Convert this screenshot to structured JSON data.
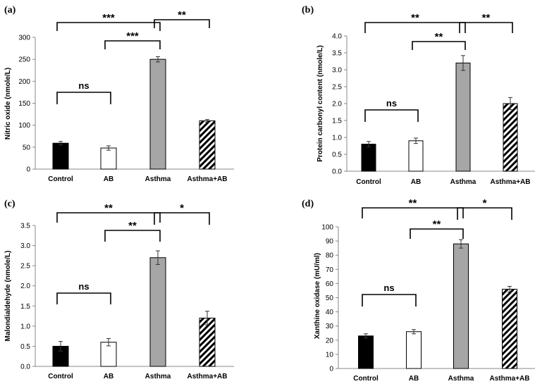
{
  "figure": {
    "categories": [
      "Control",
      "AB",
      "Asthma",
      "Asthma+AB"
    ],
    "bar_colors": [
      "#000000",
      "#ffffff",
      "#a6a6a6",
      "hatch"
    ],
    "accent": "#000000"
  },
  "chart_data": [
    {
      "type": "bar",
      "label": "(a)",
      "categories": [
        "Control",
        "AB",
        "Asthma",
        "Asthma+AB"
      ],
      "values": [
        59,
        48,
        250,
        110
      ],
      "errors": [
        4,
        5,
        6,
        3
      ],
      "ylabel": "Nitric oxide (nmole/L)",
      "ylim": [
        0,
        300
      ],
      "yticks": [
        "0",
        "50",
        "100",
        "150",
        "200",
        "250",
        "300"
      ],
      "significance": [
        {
          "from": 0,
          "to": 2,
          "label": "***"
        },
        {
          "from": 1,
          "to": 2,
          "label": "***"
        },
        {
          "from": 2,
          "to": 3,
          "label": "**"
        },
        {
          "from": 0,
          "to": 1,
          "label": "ns"
        }
      ]
    },
    {
      "type": "bar",
      "label": "(b)",
      "categories": [
        "Control",
        "AB",
        "Asthma",
        "Asthma+AB"
      ],
      "values": [
        0.8,
        0.9,
        3.2,
        2.0
      ],
      "errors": [
        0.08,
        0.08,
        0.22,
        0.18
      ],
      "ylabel": "Protein carbonyl content (nmole/L)",
      "ylim": [
        0,
        4
      ],
      "yticks": [
        "0.0",
        "0.5",
        "1.0",
        "1.5",
        "2.0",
        "2.5",
        "3.0",
        "3.5",
        "4.0"
      ],
      "significance": [
        {
          "from": 0,
          "to": 2,
          "label": "**"
        },
        {
          "from": 1,
          "to": 2,
          "label": "**"
        },
        {
          "from": 2,
          "to": 3,
          "label": "**"
        },
        {
          "from": 0,
          "to": 1,
          "label": "ns"
        }
      ]
    },
    {
      "type": "bar",
      "label": "(c)",
      "categories": [
        "Control",
        "AB",
        "Asthma",
        "Asthma+AB"
      ],
      "values": [
        0.5,
        0.6,
        2.7,
        1.2
      ],
      "errors": [
        0.12,
        0.09,
        0.17,
        0.17
      ],
      "ylabel": "Malondialdehyde (nmole/L)",
      "ylim": [
        0,
        3.5
      ],
      "yticks": [
        "0.0",
        "0.5",
        "1.0",
        "1.5",
        "2.0",
        "2.5",
        "3.0",
        "3.5"
      ],
      "significance": [
        {
          "from": 0,
          "to": 2,
          "label": "**"
        },
        {
          "from": 1,
          "to": 2,
          "label": "**"
        },
        {
          "from": 2,
          "to": 3,
          "label": "*"
        },
        {
          "from": 0,
          "to": 1,
          "label": "ns"
        }
      ]
    },
    {
      "type": "bar",
      "label": "(d)",
      "categories": [
        "Control",
        "AB",
        "Asthma",
        "Asthma+AB"
      ],
      "values": [
        23,
        26,
        88,
        56
      ],
      "errors": [
        1.5,
        1.5,
        3,
        2
      ],
      "ylabel": "Xanthine oxidase (mU/ml)",
      "ylim": [
        0,
        100
      ],
      "yticks": [
        "0",
        "10",
        "20",
        "30",
        "40",
        "50",
        "60",
        "70",
        "80",
        "90",
        "100"
      ],
      "significance": [
        {
          "from": 0,
          "to": 2,
          "label": "**"
        },
        {
          "from": 1,
          "to": 2,
          "label": "**"
        },
        {
          "from": 2,
          "to": 3,
          "label": "*"
        },
        {
          "from": 0,
          "to": 1,
          "label": "ns"
        }
      ]
    }
  ]
}
